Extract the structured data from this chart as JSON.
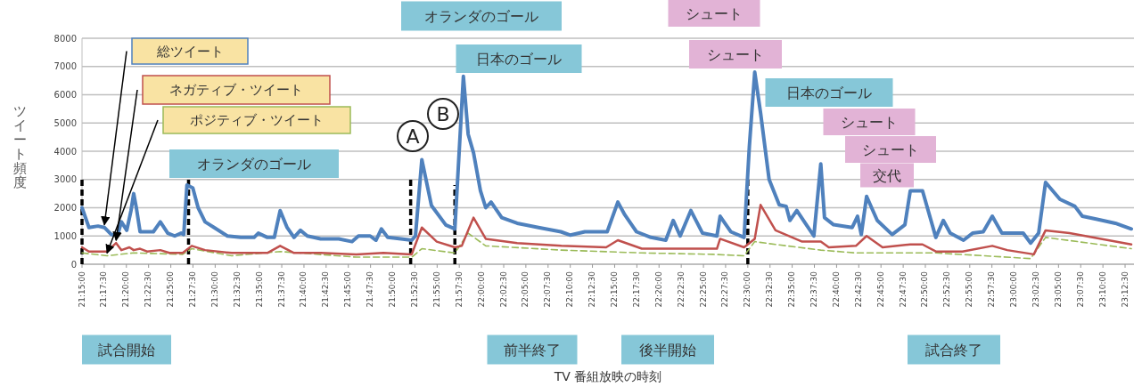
{
  "chart_data": {
    "type": "line",
    "ylabel": "ツイート頻度",
    "xlabel": "TV 番組放映の時刻",
    "ylim": [
      0,
      8000
    ],
    "yticks": [
      0,
      1000,
      2000,
      3000,
      4000,
      5000,
      6000,
      7000,
      8000
    ],
    "xlim": [
      21.25,
      23.225
    ],
    "xticks": [
      {
        "value": 21.25,
        "label": "21:15:00"
      },
      {
        "value": 21.2917,
        "label": "21:17:30"
      },
      {
        "value": 21.3333,
        "label": "21:20:00"
      },
      {
        "value": 21.375,
        "label": "21:22:30"
      },
      {
        "value": 21.4167,
        "label": "21:25:00"
      },
      {
        "value": 21.4583,
        "label": "21:27:30"
      },
      {
        "value": 21.5,
        "label": "21:30:00"
      },
      {
        "value": 21.5417,
        "label": "21:32:30"
      },
      {
        "value": 21.5833,
        "label": "21:35:00"
      },
      {
        "value": 21.625,
        "label": "21:37:30"
      },
      {
        "value": 21.6667,
        "label": "21:40:00"
      },
      {
        "value": 21.7083,
        "label": "21:42:30"
      },
      {
        "value": 21.75,
        "label": "21:45:00"
      },
      {
        "value": 21.7917,
        "label": "21:47:30"
      },
      {
        "value": 21.8333,
        "label": "21:50:00"
      },
      {
        "value": 21.875,
        "label": "21:52:30"
      },
      {
        "value": 21.9167,
        "label": "21:55:00"
      },
      {
        "value": 21.9583,
        "label": "21:57:30"
      },
      {
        "value": 22.0,
        "label": "22:00:00"
      },
      {
        "value": 22.0417,
        "label": "22:02:30"
      },
      {
        "value": 22.0833,
        "label": "22:05:00"
      },
      {
        "value": 22.125,
        "label": "22:07:30"
      },
      {
        "value": 22.1667,
        "label": "22:10:00"
      },
      {
        "value": 22.2083,
        "label": "22:12:30"
      },
      {
        "value": 22.25,
        "label": "22:15:00"
      },
      {
        "value": 22.2917,
        "label": "22:17:30"
      },
      {
        "value": 22.3333,
        "label": "22:20:00"
      },
      {
        "value": 22.375,
        "label": "22:22:30"
      },
      {
        "value": 22.4167,
        "label": "22:25:00"
      },
      {
        "value": 22.4583,
        "label": "22:27:30"
      },
      {
        "value": 22.5,
        "label": "22:30:00"
      },
      {
        "value": 22.5417,
        "label": "22:32:30"
      },
      {
        "value": 22.5833,
        "label": "22:35:00"
      },
      {
        "value": 22.625,
        "label": "22:37:30"
      },
      {
        "value": 22.6667,
        "label": "22:40:00"
      },
      {
        "value": 22.7083,
        "label": "22:42:30"
      },
      {
        "value": 22.75,
        "label": "22:45:00"
      },
      {
        "value": 22.7917,
        "label": "22:47:30"
      },
      {
        "value": 22.8333,
        "label": "22:50:00"
      },
      {
        "value": 22.875,
        "label": "22:52:30"
      },
      {
        "value": 22.9167,
        "label": "22:55:00"
      },
      {
        "value": 22.9583,
        "label": "22:57:30"
      },
      {
        "value": 23.0,
        "label": "23:00:00"
      },
      {
        "value": 23.0417,
        "label": "23:02:30"
      },
      {
        "value": 23.0833,
        "label": "23:05:00"
      },
      {
        "value": 23.125,
        "label": "23:07:30"
      },
      {
        "value": 23.1667,
        "label": "23:10:00"
      },
      {
        "value": 23.2083,
        "label": "23:12:30"
      }
    ],
    "grid": "y",
    "series": [
      {
        "name": "総ツイート",
        "color": "#4f81bd",
        "x": [
          21.25,
          21.263,
          21.28,
          21.292,
          21.305,
          21.317,
          21.324,
          21.334,
          21.342,
          21.347,
          21.352,
          21.359,
          21.372,
          21.384,
          21.397,
          21.411,
          21.424,
          21.436,
          21.441,
          21.447,
          21.458,
          21.468,
          21.481,
          21.498,
          21.523,
          21.548,
          21.573,
          21.581,
          21.598,
          21.611,
          21.622,
          21.635,
          21.648,
          21.66,
          21.673,
          21.698,
          21.732,
          21.757,
          21.769,
          21.791,
          21.802,
          21.812,
          21.824,
          21.849,
          21.869,
          21.876,
          21.888,
          21.906,
          21.933,
          21.95,
          21.966,
          21.975,
          21.985,
          21.998,
          22.008,
          22.018,
          22.038,
          22.067,
          22.107,
          22.149,
          22.167,
          22.194,
          22.236,
          22.256,
          22.269,
          22.291,
          22.318,
          22.346,
          22.36,
          22.373,
          22.393,
          22.415,
          22.442,
          22.448,
          22.468,
          22.493,
          22.503,
          22.513,
          22.524,
          22.54,
          22.559,
          22.572,
          22.579,
          22.592,
          22.624,
          22.637,
          22.644,
          22.661,
          22.696,
          22.706,
          22.713,
          22.723,
          22.743,
          22.771,
          22.795,
          22.805,
          22.828,
          22.853,
          22.867,
          22.88,
          22.905,
          22.922,
          22.942,
          22.959,
          22.977,
          23.017,
          23.031,
          23.046,
          23.059,
          23.086,
          23.114,
          23.128,
          23.154,
          23.19,
          23.22
        ],
        "values": [
          2000,
          1300,
          1350,
          1300,
          1050,
          1050,
          1500,
          1200,
          1900,
          2500,
          2000,
          1150,
          1150,
          1150,
          1500,
          1100,
          1000,
          1100,
          1050,
          2800,
          2700,
          2000,
          1500,
          1300,
          1000,
          950,
          950,
          1100,
          950,
          950,
          1900,
          1300,
          950,
          1200,
          1000,
          900,
          900,
          800,
          1000,
          1000,
          850,
          1250,
          950,
          900,
          850,
          1000,
          3700,
          2080,
          1390,
          1250,
          6650,
          4600,
          3950,
          2600,
          2000,
          2200,
          1650,
          1450,
          1300,
          1150,
          1030,
          1150,
          1150,
          2200,
          1750,
          1150,
          950,
          850,
          1550,
          1000,
          1900,
          1100,
          1000,
          1700,
          1150,
          950,
          4200,
          6800,
          5350,
          3000,
          2100,
          2050,
          1550,
          1900,
          1000,
          3550,
          1650,
          1400,
          1300,
          1700,
          1050,
          2400,
          1550,
          1050,
          1400,
          2600,
          2600,
          950,
          1550,
          1100,
          850,
          1100,
          1150,
          1700,
          1100,
          1100,
          750,
          1100,
          2900,
          2300,
          2050,
          1700,
          1600,
          1450,
          1250
        ]
      },
      {
        "name": "ネガティブ・ツイート",
        "color": "#c0504d",
        "x": [
          21.25,
          21.263,
          21.297,
          21.314,
          21.324,
          21.339,
          21.347,
          21.359,
          21.372,
          21.397,
          21.414,
          21.439,
          21.456,
          21.481,
          21.531,
          21.598,
          21.622,
          21.648,
          21.698,
          21.765,
          21.816,
          21.869,
          21.888,
          21.916,
          21.95,
          21.963,
          21.975,
          21.985,
          22.008,
          22.067,
          22.15,
          22.234,
          22.256,
          22.301,
          22.368,
          22.442,
          22.448,
          22.493,
          22.513,
          22.524,
          22.552,
          22.602,
          22.637,
          22.652,
          22.703,
          22.723,
          22.753,
          22.805,
          22.828,
          22.853,
          22.903,
          22.959,
          22.987,
          23.037,
          23.059,
          23.104,
          23.22
        ],
        "values": [
          600,
          450,
          450,
          750,
          500,
          600,
          500,
          550,
          450,
          500,
          400,
          400,
          650,
          500,
          400,
          400,
          650,
          400,
          400,
          350,
          400,
          350,
          1300,
          800,
          600,
          650,
          1200,
          1650,
          900,
          750,
          650,
          600,
          850,
          550,
          550,
          550,
          900,
          600,
          900,
          2100,
          1200,
          800,
          800,
          600,
          650,
          1000,
          600,
          700,
          700,
          450,
          450,
          650,
          500,
          350,
          1200,
          1100,
          700
        ]
      },
      {
        "name": "ポジティブ・ツイート",
        "color": "#9bbb59",
        "line_style": "dashed",
        "x": [
          21.25,
          21.297,
          21.347,
          21.439,
          21.456,
          21.531,
          21.622,
          21.765,
          21.869,
          21.888,
          21.95,
          21.975,
          22.008,
          22.15,
          22.301,
          22.435,
          22.493,
          22.513,
          22.552,
          22.637,
          22.703,
          22.853,
          23.031,
          23.059,
          23.22
        ],
        "values": [
          400,
          300,
          400,
          350,
          550,
          300,
          450,
          250,
          250,
          550,
          400,
          1100,
          650,
          500,
          400,
          350,
          300,
          800,
          700,
          500,
          400,
          400,
          200,
          950,
          550
        ]
      },
      {
        "color": "#000000",
        "line_style": "dashed",
        "x": [
          21.25,
          21.25
        ],
        "values": [
          0,
          3000
        ]
      },
      {
        "color": "#000000",
        "line_style": "dashed",
        "x": [
          21.45,
          21.45
        ],
        "values": [
          0,
          3000
        ]
      },
      {
        "color": "#000000",
        "line_style": "dashed",
        "x": [
          21.867,
          21.867
        ],
        "values": [
          0,
          3000
        ]
      },
      {
        "color": "#000000",
        "line_style": "dashed",
        "x": [
          21.95,
          21.95
        ],
        "values": [
          0,
          2800
        ]
      },
      {
        "color": "#000000",
        "line_style": "dashed",
        "x": [
          22.5,
          22.5
        ],
        "values": [
          0,
          3000
        ]
      }
    ],
    "annotations": [
      "オランダのゴール",
      "A",
      "B",
      "オランダのゴール",
      "日本のゴール",
      "シュート",
      "シュート",
      "日本のゴール",
      "シュート",
      "シュート",
      "交代",
      "試合開始",
      "前半終了",
      "後半開始",
      "試合終了"
    ]
  }
}
